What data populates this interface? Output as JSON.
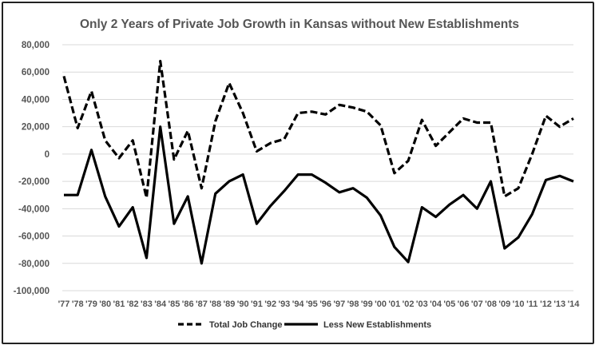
{
  "chart_data": {
    "type": "line",
    "title": "Only 2 Years of Private Job Growth in Kansas without New Establishments",
    "xlabel": "",
    "ylabel": "",
    "ylim": [
      -100000,
      80000
    ],
    "yticks": [
      80000,
      60000,
      40000,
      20000,
      0,
      -20000,
      -40000,
      -60000,
      -80000,
      -100000
    ],
    "ytick_labels": [
      "80,000",
      "60,000",
      "40,000",
      "20,000",
      "0",
      "-20,000",
      "-40,000",
      "-60,000",
      "-80,000",
      "-100,000"
    ],
    "grid": true,
    "legend_position": "bottom",
    "categories": [
      "'77",
      "'78",
      "'79",
      "'80",
      "'81",
      "'82",
      "'83",
      "'84",
      "'85",
      "'86",
      "'87",
      "'88",
      "'89",
      "'90",
      "'91",
      "'92",
      "'93",
      "'94",
      "'95",
      "'96",
      "'97",
      "'98",
      "'99",
      "'00",
      "'01",
      "'02",
      "'03",
      "'04",
      "'05",
      "'06",
      "'07",
      "'08",
      "'09",
      "'10",
      "'11",
      "'12",
      "'13",
      "'14"
    ],
    "series": [
      {
        "name": "Total Job Change",
        "style": "dashed",
        "color": "#000000",
        "values": [
          57000,
          19000,
          46000,
          10000,
          -3000,
          10000,
          -32000,
          68000,
          -4000,
          17000,
          -25000,
          24000,
          52000,
          30000,
          2000,
          8000,
          11000,
          30000,
          31000,
          29000,
          36000,
          34000,
          31000,
          21000,
          -14000,
          -5000,
          25000,
          6000,
          16000,
          26000,
          23000,
          23000,
          -31000,
          -25000,
          0,
          28000,
          20000,
          26000
        ]
      },
      {
        "name": "Less New Establishments",
        "style": "solid",
        "color": "#000000",
        "values": [
          -30000,
          -30000,
          3000,
          -31000,
          -53000,
          -39000,
          -76000,
          20000,
          -51000,
          -31000,
          -80000,
          -29000,
          -20000,
          -15000,
          -51000,
          -38000,
          -27000,
          -15000,
          -15000,
          -21000,
          -28000,
          -25000,
          -32000,
          -45000,
          -68000,
          -79000,
          -39000,
          -46000,
          -37000,
          -30000,
          -40000,
          -20000,
          -69000,
          -61000,
          -44000,
          -19000,
          -16000,
          -20000
        ]
      }
    ]
  }
}
